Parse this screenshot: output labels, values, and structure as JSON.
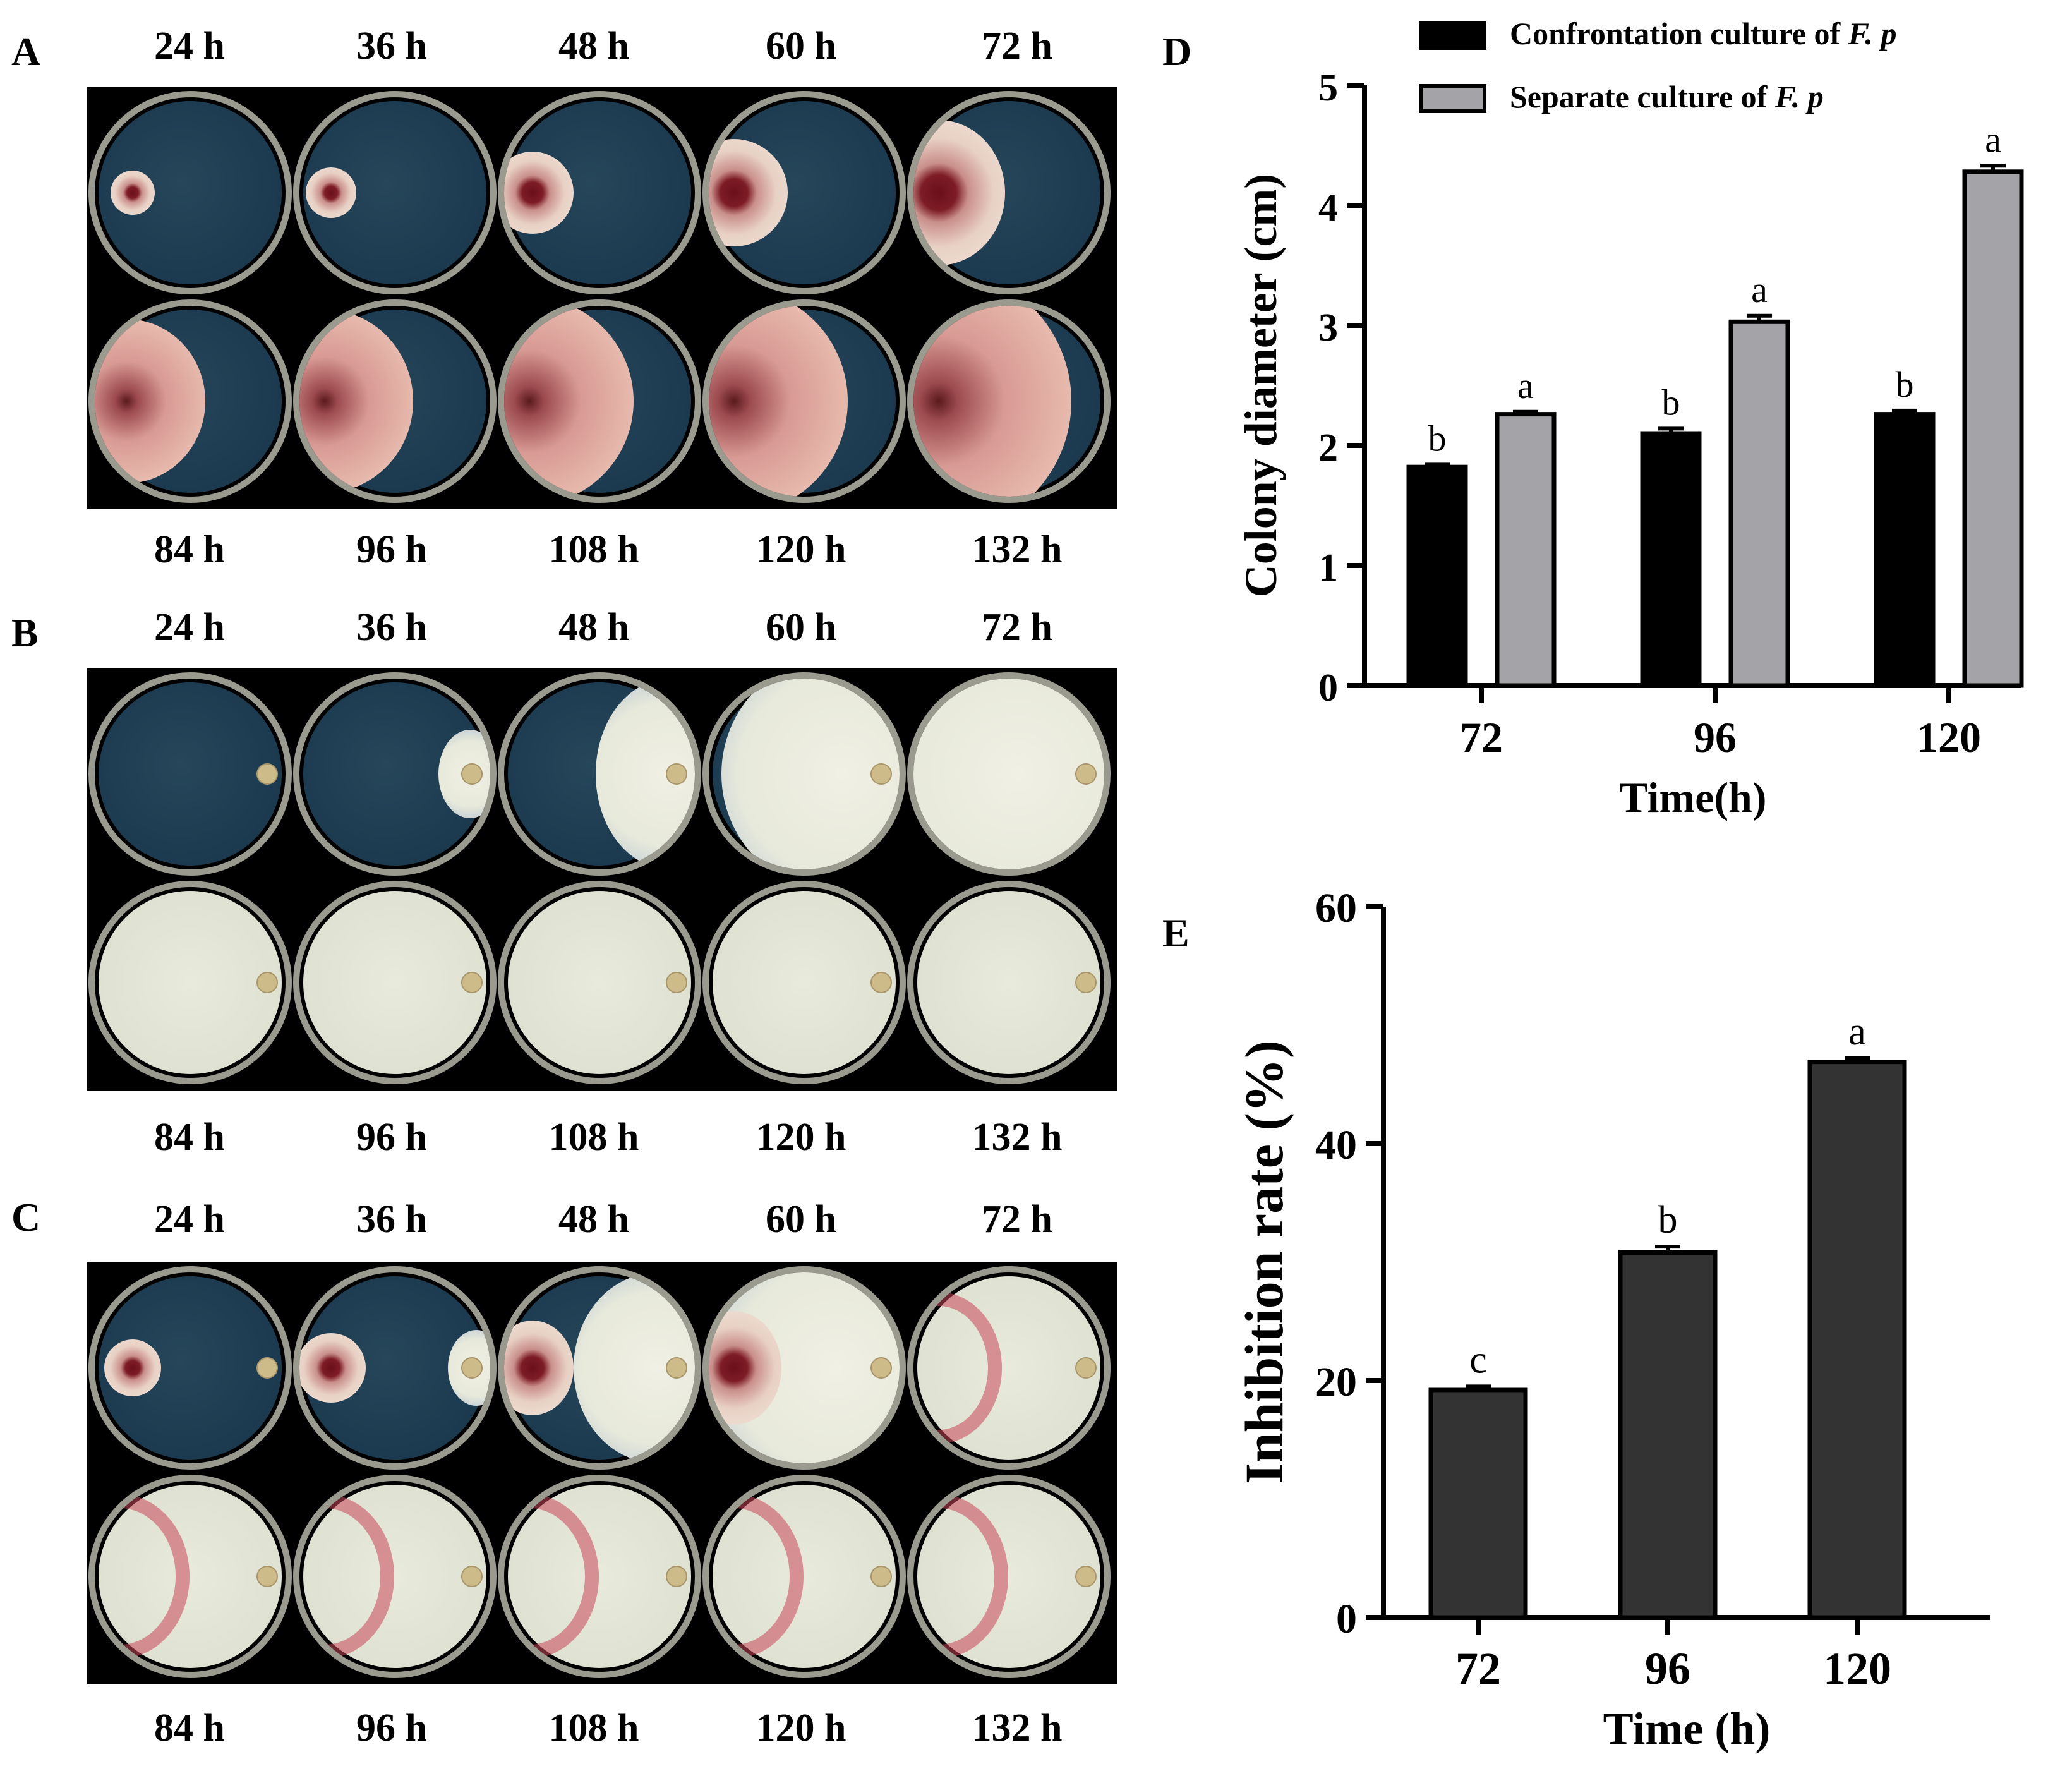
{
  "panels": {
    "A": {
      "letter": "A",
      "top_times": [
        "24 h",
        "36 h",
        "48 h",
        "60 h",
        "72 h"
      ],
      "bottom_times": [
        "84 h",
        "96 h",
        "108 h",
        "120 h",
        "132 h"
      ]
    },
    "B": {
      "letter": "B",
      "top_times": [
        "24 h",
        "36 h",
        "48 h",
        "60 h",
        "72 h"
      ],
      "bottom_times": [
        "84 h",
        "96 h",
        "108 h",
        "120 h",
        "132 h"
      ]
    },
    "C": {
      "letter": "C",
      "top_times": [
        "24 h",
        "36 h",
        "48 h",
        "60 h",
        "72 h"
      ],
      "bottom_times": [
        "84 h",
        "96 h",
        "108 h",
        "120 h",
        "132 h"
      ]
    }
  },
  "chart_data": [
    {
      "panel": "D",
      "type": "bar",
      "categories": [
        "72",
        "96",
        "120"
      ],
      "series": [
        {
          "name": "Confrontation culture of F. p",
          "legend_prefix": "Confrontation culture of ",
          "legend_italic": "F. p",
          "color": "#000000",
          "values": [
            1.82,
            2.1,
            2.26
          ],
          "errors": [
            0.02,
            0.04,
            0.03
          ],
          "letters": [
            "b",
            "b",
            "b"
          ]
        },
        {
          "name": "Separate culture of F. p",
          "legend_prefix": "Separate culture of ",
          "legend_italic": "F. p",
          "color": "#a3a3a8",
          "values": [
            2.26,
            3.03,
            4.28
          ],
          "errors": [
            0.02,
            0.05,
            0.05
          ],
          "letters": [
            "a",
            "a",
            "a"
          ]
        }
      ],
      "xlabel": "Time(h)",
      "ylabel": "Colony diameter (cm)",
      "ylim": [
        0,
        5
      ],
      "yticks": [
        0,
        1,
        2,
        3,
        4,
        5
      ],
      "legend": "top"
    },
    {
      "panel": "E",
      "type": "bar",
      "categories": [
        "72",
        "96",
        "120"
      ],
      "series": [
        {
          "name": "Inhibition rate",
          "color": "#333333",
          "values": [
            19.2,
            30.8,
            46.9
          ],
          "errors": [
            0.3,
            0.5,
            0.3
          ],
          "letters": [
            "c",
            "b",
            "a"
          ]
        }
      ],
      "xlabel": "Time (h)",
      "ylabel": "Inhibition rate (%)",
      "ylim": [
        0,
        60
      ],
      "yticks": [
        0,
        20,
        40,
        60
      ]
    }
  ]
}
